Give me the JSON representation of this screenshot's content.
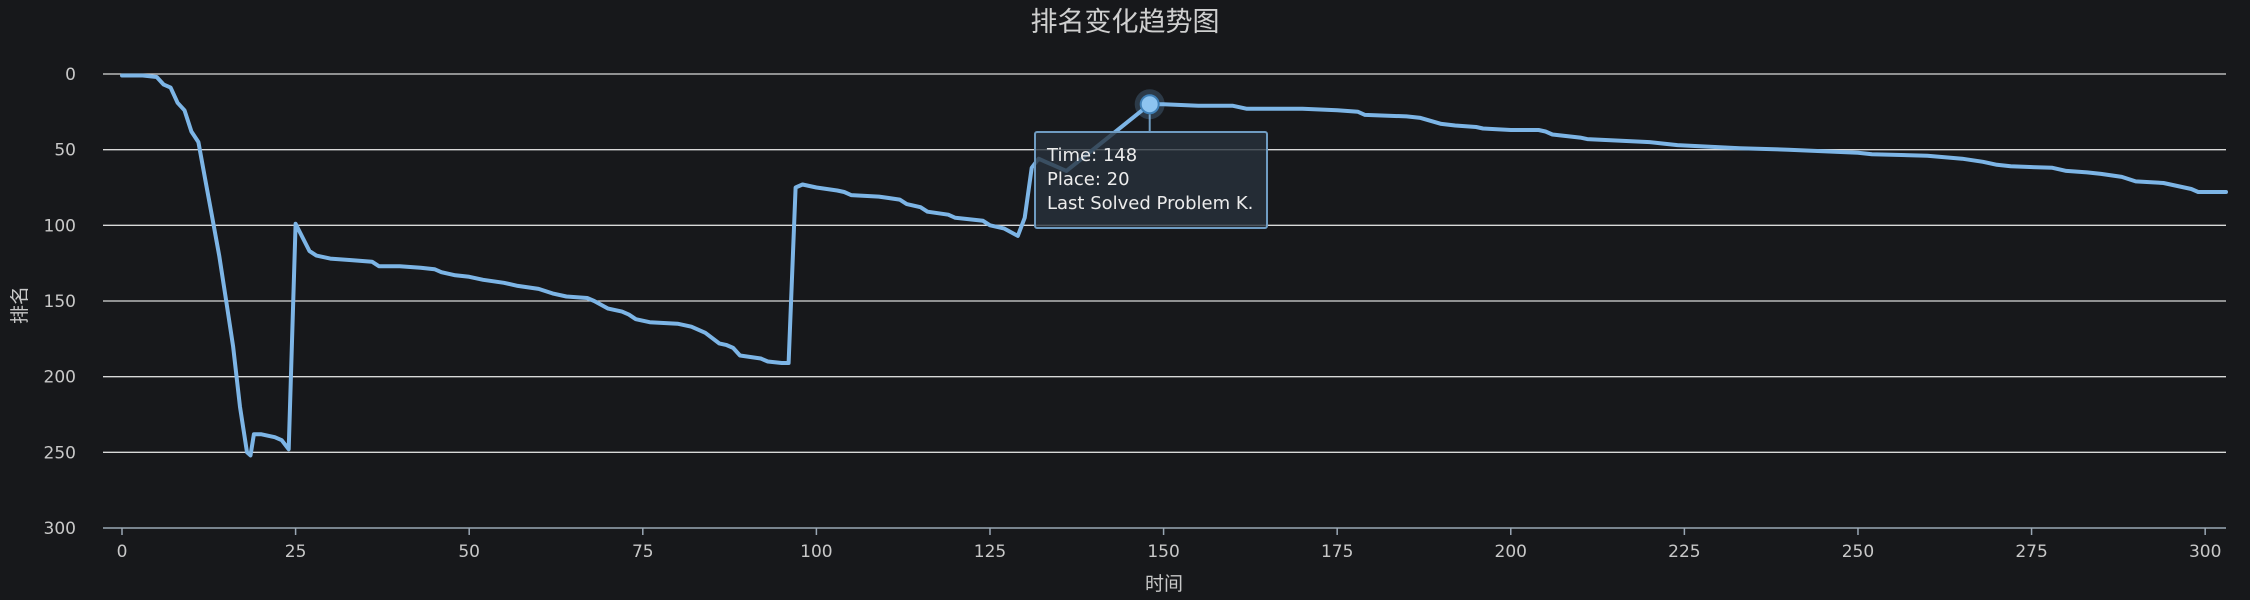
{
  "chart_data": {
    "type": "line",
    "title": "排名变化趋势图",
    "xlabel": "时间",
    "ylabel": "排名",
    "xlim": [
      0,
      303
    ],
    "ylim": [
      0,
      300
    ],
    "y_inverted": true,
    "grid": true,
    "x_ticks": [
      0,
      25,
      50,
      75,
      100,
      125,
      150,
      175,
      200,
      225,
      250,
      275,
      300
    ],
    "y_ticks": [
      0,
      50,
      100,
      150,
      200,
      250,
      300
    ],
    "series": [
      {
        "color": "#7db5e6",
        "points": [
          [
            0,
            1
          ],
          [
            3,
            1
          ],
          [
            5,
            2
          ],
          [
            6,
            7
          ],
          [
            7,
            9
          ],
          [
            8,
            19
          ],
          [
            9,
            24
          ],
          [
            10,
            38
          ],
          [
            11,
            45
          ],
          [
            12,
            70
          ],
          [
            13,
            95
          ],
          [
            14,
            120
          ],
          [
            15,
            150
          ],
          [
            16,
            180
          ],
          [
            17,
            220
          ],
          [
            18,
            250
          ],
          [
            18.5,
            252
          ],
          [
            19,
            238
          ],
          [
            20,
            238
          ],
          [
            21,
            239
          ],
          [
            22,
            240
          ],
          [
            23,
            242
          ],
          [
            24,
            248
          ],
          [
            25,
            99
          ],
          [
            26,
            108
          ],
          [
            27,
            117
          ],
          [
            28,
            120
          ],
          [
            30,
            122
          ],
          [
            33,
            123
          ],
          [
            36,
            124
          ],
          [
            37,
            127
          ],
          [
            40,
            127
          ],
          [
            43,
            128
          ],
          [
            45,
            129
          ],
          [
            46,
            131
          ],
          [
            48,
            133
          ],
          [
            50,
            134
          ],
          [
            52,
            136
          ],
          [
            55,
            138
          ],
          [
            57,
            140
          ],
          [
            60,
            142
          ],
          [
            62,
            145
          ],
          [
            64,
            147
          ],
          [
            67,
            148
          ],
          [
            68,
            150
          ],
          [
            70,
            155
          ],
          [
            72,
            157
          ],
          [
            73,
            159
          ],
          [
            74,
            162
          ],
          [
            76,
            164
          ],
          [
            80,
            165
          ],
          [
            82,
            167
          ],
          [
            84,
            171
          ],
          [
            86,
            178
          ],
          [
            87,
            179
          ],
          [
            88,
            181
          ],
          [
            89,
            186
          ],
          [
            92,
            188
          ],
          [
            93,
            190
          ],
          [
            95,
            191
          ],
          [
            96,
            191
          ],
          [
            97,
            75
          ],
          [
            98,
            73
          ],
          [
            100,
            75
          ],
          [
            103,
            77
          ],
          [
            104,
            78
          ],
          [
            105,
            80
          ],
          [
            109,
            81
          ],
          [
            112,
            83
          ],
          [
            113,
            86
          ],
          [
            115,
            88
          ],
          [
            116,
            91
          ],
          [
            119,
            93
          ],
          [
            120,
            95
          ],
          [
            122,
            96
          ],
          [
            124,
            97
          ],
          [
            125,
            100
          ],
          [
            127,
            102
          ],
          [
            129,
            107
          ],
          [
            130,
            95
          ],
          [
            131,
            62
          ],
          [
            132,
            56
          ],
          [
            133,
            58
          ],
          [
            134,
            60
          ],
          [
            136,
            64
          ],
          [
            148,
            20
          ],
          [
            150,
            20
          ],
          [
            155,
            21
          ],
          [
            160,
            21
          ],
          [
            162,
            23
          ],
          [
            170,
            23
          ],
          [
            175,
            24
          ],
          [
            178,
            25
          ],
          [
            179,
            27
          ],
          [
            185,
            28
          ],
          [
            187,
            29
          ],
          [
            190,
            33
          ],
          [
            192,
            34
          ],
          [
            195,
            35
          ],
          [
            196,
            36
          ],
          [
            200,
            37
          ],
          [
            204,
            37
          ],
          [
            205,
            38
          ],
          [
            206,
            40
          ],
          [
            210,
            42
          ],
          [
            211,
            43
          ],
          [
            220,
            45
          ],
          [
            222,
            46
          ],
          [
            224,
            47
          ],
          [
            233,
            49
          ],
          [
            240,
            50
          ],
          [
            250,
            52
          ],
          [
            252,
            53
          ],
          [
            260,
            54
          ],
          [
            265,
            56
          ],
          [
            268,
            58
          ],
          [
            270,
            60
          ],
          [
            272,
            61
          ],
          [
            278,
            62
          ],
          [
            280,
            64
          ],
          [
            283,
            65
          ],
          [
            285,
            66
          ],
          [
            288,
            68
          ],
          [
            290,
            71
          ],
          [
            294,
            72
          ],
          [
            296,
            74
          ],
          [
            298,
            76
          ],
          [
            299,
            78
          ],
          [
            303,
            78
          ]
        ]
      }
    ],
    "highlight": {
      "x": 148,
      "y": 20
    },
    "tooltip": {
      "time_label": "Time",
      "time_value": "148",
      "place_label": "Place",
      "place_value": "20",
      "last_solved": "Last Solved Problem K."
    }
  }
}
